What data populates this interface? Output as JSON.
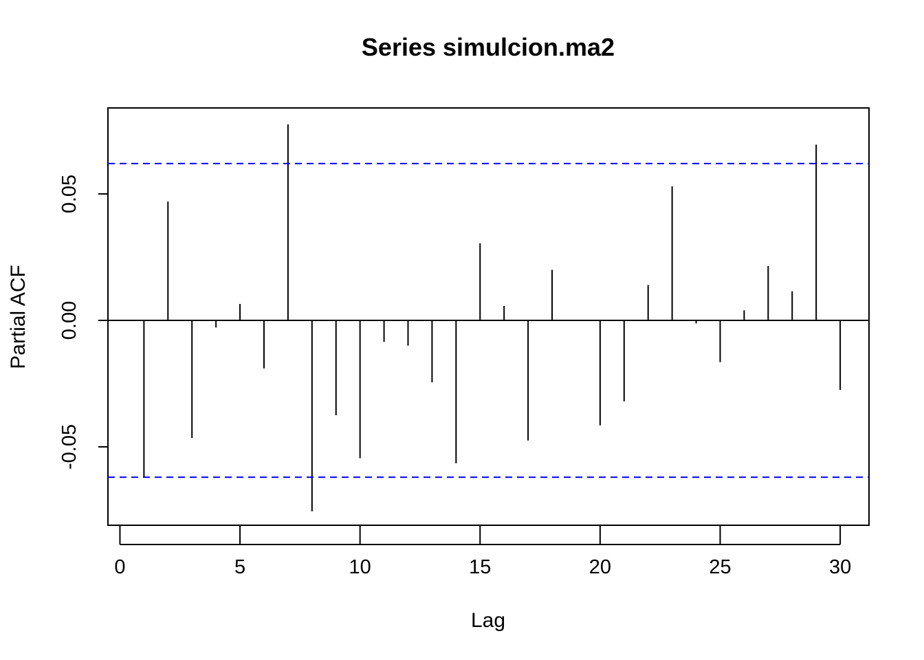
{
  "chart_data": {
    "type": "bar",
    "title": "Series  simulcion.ma2",
    "xlabel": "Lag",
    "ylabel": "Partial ACF",
    "xlim": [
      -0.5,
      31.2
    ],
    "ylim": [
      -0.081,
      0.084
    ],
    "xticks": [
      0,
      5,
      10,
      15,
      20,
      25,
      30
    ],
    "yticks": [
      "-0.05",
      "0.00",
      "0.05"
    ],
    "confidence_band": 0.062,
    "colors": {
      "bars": "#000000",
      "confidence": "#0000ff",
      "zero_line": "#000000"
    },
    "lags": [
      1,
      2,
      3,
      4,
      5,
      6,
      7,
      8,
      9,
      10,
      11,
      12,
      13,
      14,
      15,
      16,
      17,
      18,
      19,
      20,
      21,
      22,
      23,
      24,
      25,
      26,
      27,
      28,
      29,
      30
    ],
    "values": [
      -0.062,
      0.047,
      -0.0465,
      -0.0028,
      0.0065,
      -0.019,
      0.0775,
      -0.0755,
      -0.0375,
      -0.0545,
      -0.0085,
      -0.01,
      -0.0245,
      -0.0565,
      0.0305,
      0.0057,
      -0.0475,
      0.02,
      0.0002,
      -0.0415,
      -0.032,
      0.014,
      0.053,
      -0.0012,
      -0.0165,
      0.004,
      0.0215,
      0.0115,
      0.0695,
      -0.0275
    ]
  }
}
